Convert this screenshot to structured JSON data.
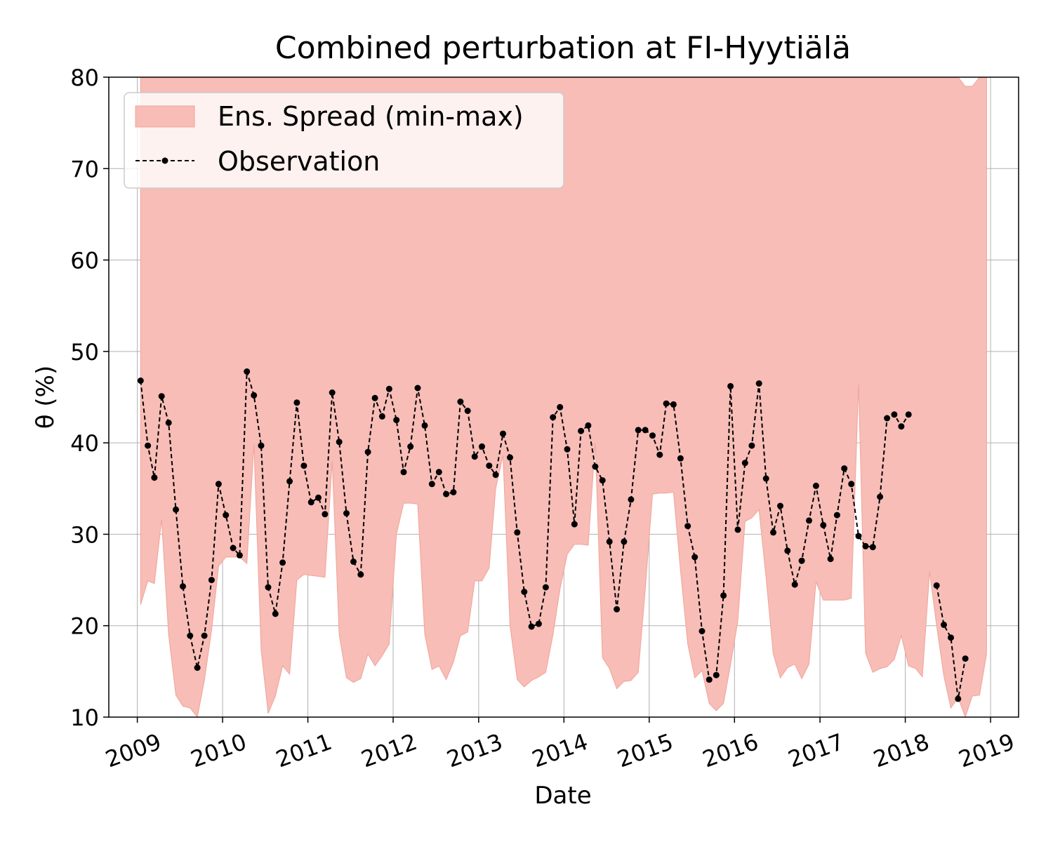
{
  "chart_data": {
    "type": "line",
    "title": "Combined perturbation at FI-Hyytiälä",
    "xlabel": "Date",
    "ylabel": "θ  (%)",
    "x_tick_labels": [
      "2009",
      "2010",
      "2011",
      "2012",
      "2013",
      "2014",
      "2015",
      "2016",
      "2017",
      "2018",
      "2019"
    ],
    "y_tick_labels": [
      "10",
      "20",
      "30",
      "40",
      "50",
      "60",
      "70",
      "80"
    ],
    "xlim": [
      "2008-09-01",
      "2019-05-01"
    ],
    "ylim": [
      10,
      80
    ],
    "grid": true,
    "legend_position": "top-left",
    "legend": [
      {
        "label": "Ens. Spread (min-max)",
        "kind": "area"
      },
      {
        "label": "Observation",
        "kind": "line-marker"
      }
    ],
    "colors": {
      "spread_fill": "#f7bdb6",
      "spread_edge": "#f0a49a",
      "observation": "#000000",
      "grid": "#b0b0b0"
    },
    "series": [
      {
        "name": "Ens. Spread (min-max)",
        "kind": "band",
        "x": [
          "2009-01-15",
          "2009-02-15",
          "2009-03-15",
          "2009-04-15",
          "2009-05-15",
          "2009-06-15",
          "2009-07-15",
          "2009-08-15",
          "2009-09-15",
          "2009-10-15",
          "2009-11-15",
          "2009-12-15",
          "2010-01-15",
          "2010-02-15",
          "2010-03-15",
          "2010-04-15",
          "2010-05-15",
          "2010-06-15",
          "2010-07-15",
          "2010-08-15",
          "2010-09-15",
          "2010-10-15",
          "2010-11-15",
          "2010-12-15",
          "2011-01-15",
          "2011-02-15",
          "2011-03-15",
          "2011-04-15",
          "2011-05-15",
          "2011-06-15",
          "2011-07-15",
          "2011-08-15",
          "2011-09-15",
          "2011-10-15",
          "2011-11-15",
          "2011-12-15",
          "2012-01-15",
          "2012-02-15",
          "2012-03-15",
          "2012-04-15",
          "2012-05-15",
          "2012-06-15",
          "2012-07-15",
          "2012-08-15",
          "2012-09-15",
          "2012-10-15",
          "2012-11-15",
          "2012-12-15",
          "2013-01-15",
          "2013-02-15",
          "2013-03-15",
          "2013-04-15",
          "2013-05-15",
          "2013-06-15",
          "2013-07-15",
          "2013-08-15",
          "2013-09-15",
          "2013-10-15",
          "2013-11-15",
          "2013-12-15",
          "2014-01-15",
          "2014-02-15",
          "2014-03-15",
          "2014-04-15",
          "2014-05-15",
          "2014-06-15",
          "2014-07-15",
          "2014-08-15",
          "2014-09-15",
          "2014-10-15",
          "2014-11-15",
          "2014-12-15",
          "2015-01-15",
          "2015-02-15",
          "2015-03-15",
          "2015-04-15",
          "2015-05-15",
          "2015-06-15",
          "2015-07-15",
          "2015-08-15",
          "2015-09-15",
          "2015-10-15",
          "2015-11-15",
          "2015-12-15",
          "2016-01-15",
          "2016-02-15",
          "2016-03-15",
          "2016-04-15",
          "2016-05-15",
          "2016-06-15",
          "2016-07-15",
          "2016-08-15",
          "2016-09-15",
          "2016-10-15",
          "2016-11-15",
          "2016-12-15",
          "2017-01-15",
          "2017-02-15",
          "2017-03-15",
          "2017-04-15",
          "2017-05-15",
          "2017-06-15",
          "2017-07-15",
          "2017-08-15",
          "2017-09-15",
          "2017-10-15",
          "2017-11-15",
          "2017-12-15",
          "2018-01-15",
          "2018-02-15",
          "2018-03-15",
          "2018-04-15",
          "2018-05-15",
          "2018-06-15",
          "2018-07-15",
          "2018-08-15",
          "2018-09-15",
          "2018-10-15",
          "2018-11-15",
          "2018-12-15"
        ],
        "lower": [
          22.3,
          24.9,
          24.6,
          31.6,
          19.0,
          12.4,
          11.2,
          11.0,
          10.0,
          14.0,
          19.5,
          26.5,
          27.5,
          27.5,
          27.5,
          26.8,
          39.8,
          17.3,
          10.4,
          12.3,
          15.6,
          14.7,
          25.0,
          25.6,
          25.5,
          25.4,
          25.3,
          38.0,
          19.0,
          14.3,
          13.8,
          14.2,
          16.9,
          15.6,
          16.7,
          18.0,
          30.0,
          33.4,
          33.4,
          33.3,
          19.1,
          15.2,
          15.6,
          14.1,
          16.0,
          18.9,
          19.3,
          24.9,
          24.9,
          26.3,
          35.0,
          38.6,
          20.0,
          14.1,
          13.3,
          14.0,
          14.4,
          14.9,
          19.0,
          24.0,
          27.8,
          28.9,
          28.9,
          28.8,
          40.0,
          16.5,
          15.3,
          13.1,
          13.9,
          14.0,
          14.9,
          24.0,
          34.4,
          34.5,
          34.5,
          34.6,
          26.0,
          18.0,
          14.3,
          15.1,
          11.5,
          10.7,
          11.5,
          15.7,
          20.5,
          31.4,
          31.8,
          32.7,
          25.3,
          16.9,
          14.3,
          15.4,
          15.8,
          14.2,
          15.8,
          24.8,
          22.8,
          22.8,
          22.8,
          22.8,
          23.0,
          46.4,
          17.0,
          14.9,
          15.3,
          15.5,
          16.3,
          18.9,
          15.6,
          15.3,
          14.4,
          25.9,
          20.0,
          14.5,
          11.0,
          12.1,
          10.0,
          12.3,
          12.4,
          16.9
        ],
        "upper": [
          80,
          80,
          80,
          80,
          80,
          80,
          80,
          80,
          80,
          80,
          80,
          80,
          80,
          80,
          80,
          80,
          80,
          80,
          80,
          80,
          80,
          80,
          80,
          80,
          80,
          80,
          80,
          80,
          80,
          80,
          80,
          80,
          80,
          80,
          80,
          80,
          80,
          80,
          80,
          80,
          80,
          80,
          80,
          80,
          80,
          80,
          80,
          80,
          80,
          80,
          80,
          80,
          80,
          80,
          80,
          80,
          80,
          80,
          80,
          80,
          80,
          80,
          80,
          80,
          80,
          80,
          80,
          80,
          80,
          80,
          80,
          80,
          80,
          80,
          80,
          80,
          80,
          80,
          80,
          80,
          80,
          80,
          80,
          80,
          80,
          80,
          80,
          80,
          80,
          80,
          80,
          80,
          80,
          80,
          80,
          80,
          80,
          80,
          80,
          80,
          80,
          80,
          80,
          80,
          80,
          80,
          80,
          80,
          80,
          80,
          80,
          80,
          80,
          80,
          80,
          80,
          79.0,
          79.0,
          80,
          80
        ]
      },
      {
        "name": "Observation",
        "kind": "line",
        "x": [
          "2009-01-15",
          "2009-02-15",
          "2009-03-15",
          "2009-04-15",
          "2009-05-15",
          "2009-06-15",
          "2009-07-15",
          "2009-08-15",
          "2009-09-15",
          "2009-10-15",
          "2009-11-15",
          "2009-12-15",
          "2010-01-15",
          "2010-02-15",
          "2010-03-15",
          "2010-04-15",
          "2010-05-15",
          "2010-06-15",
          "2010-07-15",
          "2010-08-15",
          "2010-09-15",
          "2010-10-15",
          "2010-11-15",
          "2010-12-15",
          "2011-01-15",
          "2011-02-15",
          "2011-03-15",
          "2011-04-15",
          "2011-05-15",
          "2011-06-15",
          "2011-07-15",
          "2011-08-15",
          "2011-09-15",
          "2011-10-15",
          "2011-11-15",
          "2011-12-15",
          "2012-01-15",
          "2012-02-15",
          "2012-03-15",
          "2012-04-15",
          "2012-05-15",
          "2012-06-15",
          "2012-07-15",
          "2012-08-15",
          "2012-09-15",
          "2012-10-15",
          "2012-11-15",
          "2012-12-15",
          "2013-01-15",
          "2013-02-15",
          "2013-03-15",
          "2013-04-15",
          "2013-05-15",
          "2013-06-15",
          "2013-07-15",
          "2013-08-15",
          "2013-09-15",
          "2013-10-15",
          "2013-11-15",
          "2013-12-15",
          "2014-01-15",
          "2014-02-15",
          "2014-03-15",
          "2014-04-15",
          "2014-05-15",
          "2014-06-15",
          "2014-07-15",
          "2014-08-15",
          "2014-09-15",
          "2014-10-15",
          "2014-11-15",
          "2014-12-15",
          "2015-01-15",
          "2015-02-15",
          "2015-03-15",
          "2015-04-15",
          "2015-05-15",
          "2015-06-15",
          "2015-07-15",
          "2015-08-15",
          "2015-09-15",
          "2015-10-15",
          "2015-11-15",
          "2015-12-15",
          "2016-01-15",
          "2016-02-15",
          "2016-03-15",
          "2016-04-15",
          "2016-05-15",
          "2016-06-15",
          "2016-07-15",
          "2016-08-15",
          "2016-09-15",
          "2016-10-15",
          "2016-11-15",
          "2016-12-15",
          "2017-01-15",
          "2017-02-15",
          "2017-03-15",
          "2017-04-15",
          "2017-05-15",
          "2017-06-15",
          "2017-07-15",
          "2017-08-15",
          "2017-09-15",
          "2017-10-15",
          "2017-11-15",
          "2017-12-15",
          "2018-01-15",
          "2018-05-15",
          "2018-06-15",
          "2018-07-15",
          "2018-08-15",
          "2018-09-15"
        ],
        "y": [
          46.8,
          39.7,
          36.2,
          45.1,
          42.2,
          32.7,
          24.3,
          18.9,
          15.4,
          18.9,
          25.0,
          35.5,
          32.1,
          28.5,
          27.7,
          47.8,
          45.2,
          39.7,
          24.2,
          21.3,
          26.9,
          35.8,
          44.4,
          37.5,
          33.5,
          34.0,
          32.2,
          45.5,
          40.1,
          32.3,
          27.0,
          25.6,
          39.0,
          44.9,
          42.9,
          45.9,
          42.5,
          36.8,
          39.6,
          46.0,
          41.9,
          35.5,
          36.8,
          34.4,
          34.6,
          44.5,
          43.5,
          38.5,
          39.6,
          37.5,
          36.5,
          41.0,
          38.4,
          30.2,
          23.7,
          19.9,
          20.2,
          24.2,
          42.8,
          43.9,
          39.3,
          31.1,
          41.3,
          41.9,
          37.4,
          35.9,
          29.2,
          21.8,
          29.2,
          33.8,
          41.4,
          41.4,
          40.8,
          38.7,
          44.3,
          44.2,
          38.3,
          30.9,
          27.5,
          19.4,
          14.1,
          14.6,
          23.3,
          46.2,
          30.5,
          37.8,
          39.7,
          46.5,
          36.1,
          30.2,
          33.1,
          28.2,
          24.5,
          27.1,
          31.5,
          35.3,
          31.0,
          27.3,
          32.1,
          37.2,
          35.5,
          29.8,
          28.7,
          28.6,
          34.1,
          42.7,
          43.1,
          41.8,
          43.1,
          24.4,
          20.1,
          18.7,
          12.0,
          16.4
        ]
      }
    ]
  }
}
